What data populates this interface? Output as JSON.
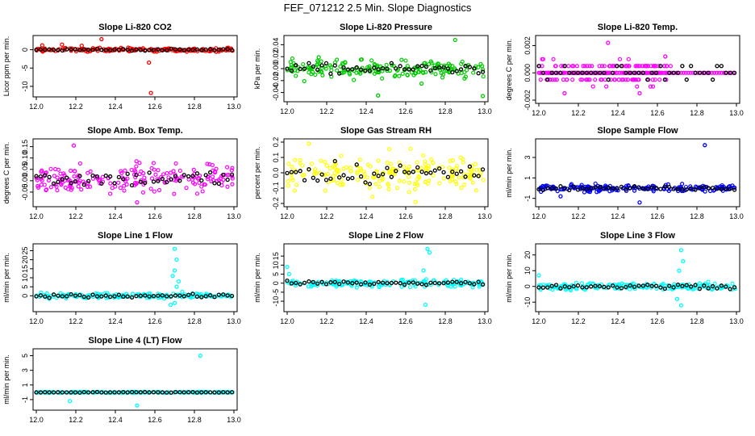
{
  "figure_title": "FEF_071212  2.5 Min. Slope Diagnostics",
  "colors": {
    "red": "#ff0000",
    "green": "#00cc00",
    "magenta": "#ff00ff",
    "yellow": "#ffff00",
    "blue": "#0000ff",
    "cyan": "#00ffff",
    "black": "#000000"
  },
  "chart_data": [
    {
      "type": "scatter",
      "title": "Slope Li-820 CO2",
      "ylabel": "Licor ppm per min.",
      "xlim": [
        12.0,
        13.0
      ],
      "ylim": [
        -12,
        3
      ],
      "xticks": [
        "12.0",
        "12.2",
        "12.4",
        "12.6",
        "12.8",
        "13.0"
      ],
      "yticks": [
        "-10",
        "-5",
        "0"
      ],
      "color": "red",
      "center": 0,
      "spread": 0.4,
      "outliers": [
        [
          12.33,
          2.9
        ],
        [
          12.58,
          -11.8
        ],
        [
          12.57,
          -3.5
        ],
        [
          12.13,
          1.4
        ],
        [
          12.03,
          1.2
        ],
        [
          12.23,
          1.1
        ]
      ]
    },
    {
      "type": "scatter",
      "title": "Slope Li-820 Pressure",
      "ylabel": "kPa per min.",
      "xlim": [
        12.0,
        13.0
      ],
      "ylim": [
        -0.05,
        0.05
      ],
      "xticks": [
        "12.0",
        "12.2",
        "12.4",
        "12.6",
        "12.8",
        "13.0"
      ],
      "yticks": [
        "-0.04",
        "-0.02",
        "0.00",
        "0.02",
        "0.04"
      ],
      "color": "green",
      "center": 0,
      "spread": 0.012,
      "outliers": [
        [
          12.85,
          0.048
        ],
        [
          12.46,
          -0.045
        ],
        [
          12.99,
          -0.046
        ],
        [
          12.68,
          -0.025
        ],
        [
          12.16,
          0.019
        ]
      ]
    },
    {
      "type": "scatter",
      "title": "Slope Li-820 Temp.",
      "ylabel": "degrees C per min.",
      "xlim": [
        12.0,
        13.0
      ],
      "ylim": [
        -0.002,
        0.0025
      ],
      "xticks": [
        "12.0",
        "12.2",
        "12.4",
        "12.6",
        "12.8",
        "13.0"
      ],
      "yticks": [
        "-0.002",
        "0.000",
        "0.002"
      ],
      "color": "magenta",
      "center": 0,
      "spread": 0.0007,
      "quantized": 0.0005,
      "cutoff": 12.67,
      "outliers": [
        [
          12.35,
          0.0022
        ],
        [
          12.13,
          -0.0015
        ],
        [
          12.51,
          -0.0015
        ],
        [
          12.64,
          0.0012
        ]
      ]
    },
    {
      "type": "scatter",
      "title": "Slope Amb. Box Temp.",
      "ylabel": "degrees C per min.",
      "xlim": [
        12.0,
        13.0
      ],
      "ylim": [
        -0.1,
        0.17
      ],
      "xticks": [
        "12.0",
        "12.2",
        "12.4",
        "12.6",
        "12.8",
        "13.0"
      ],
      "yticks": [
        "-0.05",
        "0.00",
        "0.05",
        "0.10",
        "0.15"
      ],
      "color": "magenta",
      "center": 0.01,
      "spread": 0.05,
      "outliers": [
        [
          12.19,
          0.155
        ],
        [
          12.51,
          -0.095
        ]
      ]
    },
    {
      "type": "scatter",
      "title": "Slope Gas Stream RH",
      "ylabel": "percent per min.",
      "xlim": [
        12.0,
        13.0
      ],
      "ylim": [
        -0.2,
        0.2
      ],
      "xticks": [
        "12.0",
        "12.2",
        "12.4",
        "12.6",
        "12.8",
        "13.0"
      ],
      "yticks": [
        "-0.2",
        "-0.1",
        "0.0",
        "0.1",
        "0.2"
      ],
      "color": "yellow",
      "center": 0,
      "spread": 0.1,
      "outliers": [
        [
          12.65,
          -0.19
        ],
        [
          12.11,
          0.19
        ]
      ]
    },
    {
      "type": "scatter",
      "title": "Slope Sample Flow",
      "ylabel": "ml/min per min.",
      "xlim": [
        12.0,
        13.0
      ],
      "ylim": [
        -1.5,
        4.5
      ],
      "xticks": [
        "12.0",
        "12.2",
        "12.4",
        "12.6",
        "12.8",
        "13.0"
      ],
      "yticks": [
        "-1",
        "1",
        "3"
      ],
      "color": "blue",
      "center": 0,
      "spread": 0.25,
      "outliers": [
        [
          12.84,
          4.2
        ],
        [
          12.51,
          -1.4
        ],
        [
          12.11,
          -0.8
        ]
      ]
    },
    {
      "type": "scatter",
      "title": "Slope Line 1 Flow",
      "ylabel": "ml/min per min.",
      "xlim": [
        12.0,
        13.0
      ],
      "ylim": [
        -7,
        27
      ],
      "xticks": [
        "12.0",
        "12.2",
        "12.4",
        "12.6",
        "12.8",
        "13.0"
      ],
      "yticks": [
        "0",
        "5",
        "10",
        "15",
        "20",
        "25"
      ],
      "color": "cyan",
      "center": 0,
      "spread": 1.2,
      "outliers": [
        [
          12.7,
          26
        ],
        [
          12.71,
          20
        ],
        [
          12.7,
          14
        ],
        [
          12.69,
          11
        ],
        [
          12.72,
          8
        ],
        [
          12.68,
          -5
        ],
        [
          12.7,
          -4
        ],
        [
          12.71,
          5
        ]
      ]
    },
    {
      "type": "scatter",
      "title": "Slope Line 2 Flow",
      "ylabel": "ml/min per min.",
      "xlim": [
        12.0,
        13.0
      ],
      "ylim": [
        -14,
        20
      ],
      "xticks": [
        "12.0",
        "12.2",
        "12.4",
        "12.6",
        "12.8",
        "13.0"
      ],
      "yticks": [
        "-10",
        "-5",
        "0",
        "5",
        "10",
        "15"
      ],
      "color": "cyan",
      "center": 0,
      "spread": 1.8,
      "outliers": [
        [
          12.71,
          19
        ],
        [
          12.72,
          17
        ],
        [
          12.0,
          9
        ],
        [
          12.7,
          -12
        ],
        [
          12.69,
          7
        ],
        [
          12.01,
          5
        ]
      ]
    },
    {
      "type": "scatter",
      "title": "Slope Line 3 Flow",
      "ylabel": "ml/min per min.",
      "xlim": [
        12.0,
        13.0
      ],
      "ylim": [
        -14,
        25
      ],
      "xticks": [
        "12.0",
        "12.2",
        "12.4",
        "12.6",
        "12.8",
        "13.0"
      ],
      "yticks": [
        "-10",
        "0",
        "10",
        "20"
      ],
      "color": "cyan",
      "center": 0,
      "spread": 1.8,
      "outliers": [
        [
          12.72,
          23
        ],
        [
          12.73,
          16
        ],
        [
          12.71,
          10
        ],
        [
          12.72,
          -12
        ],
        [
          12.7,
          -8
        ],
        [
          12.0,
          7
        ]
      ]
    },
    {
      "type": "scatter",
      "title": "Slope Line 4 (LT) Flow",
      "ylabel": "ml/min per min.",
      "xlim": [
        12.0,
        13.0
      ],
      "ylim": [
        -2,
        5.5
      ],
      "xticks": [
        "12.0",
        "12.2",
        "12.4",
        "12.6",
        "12.8",
        "13.0"
      ],
      "yticks": [
        "-1",
        "1",
        "3",
        "5"
      ],
      "color": "cyan",
      "center": 0,
      "spread": 0.05,
      "outliers": [
        [
          12.83,
          5.0
        ],
        [
          12.51,
          -1.8
        ],
        [
          12.17,
          -1.2
        ]
      ]
    }
  ]
}
